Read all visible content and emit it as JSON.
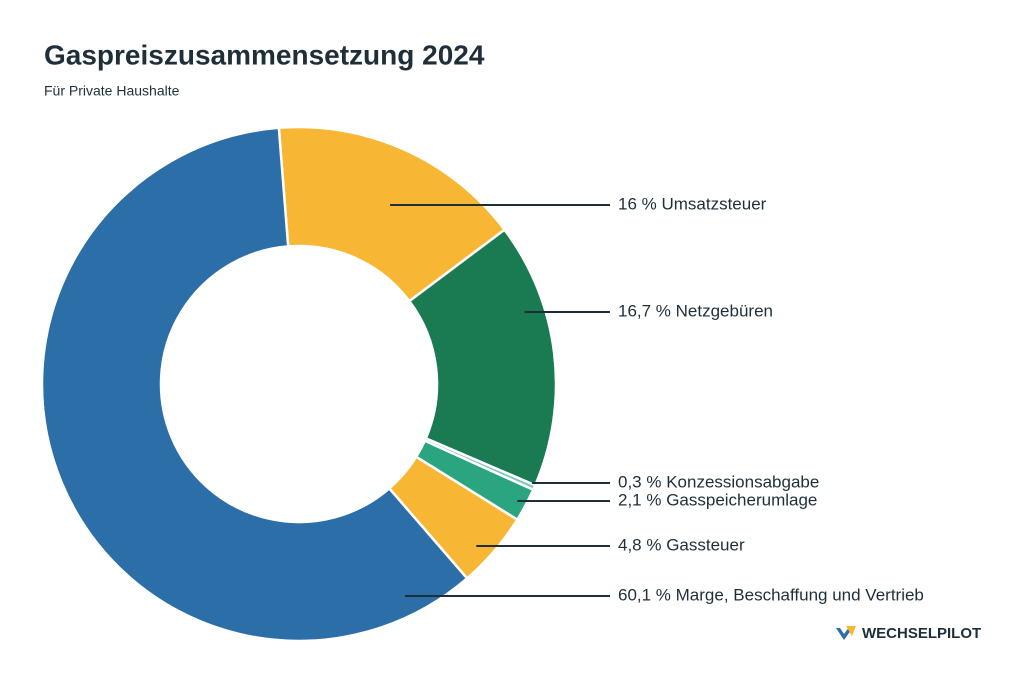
{
  "chart_data": {
    "type": "donut",
    "title": "Gaspreiszusammensetzung 2024",
    "subtitle": "Für Private Haushalte",
    "values": [
      16,
      16.7,
      0.3,
      2.1,
      4.8,
      60.1
    ],
    "value_labels": [
      "16 % Umsatzsteuer",
      "16,7 % Netzgebüren",
      "0,3 % Konzessionsabgabe",
      "2,1 % Gasspeicherumlage",
      "4,8 % Gassteuer",
      "60,1 % Marge, Beschaffung und Vertrieb"
    ],
    "colors": [
      "#f7b735",
      "#1a7a52",
      "#7fc4bd",
      "#2aa57f",
      "#f7b735",
      "#2b6ea8"
    ],
    "brand": "WECHSELPILOT"
  }
}
